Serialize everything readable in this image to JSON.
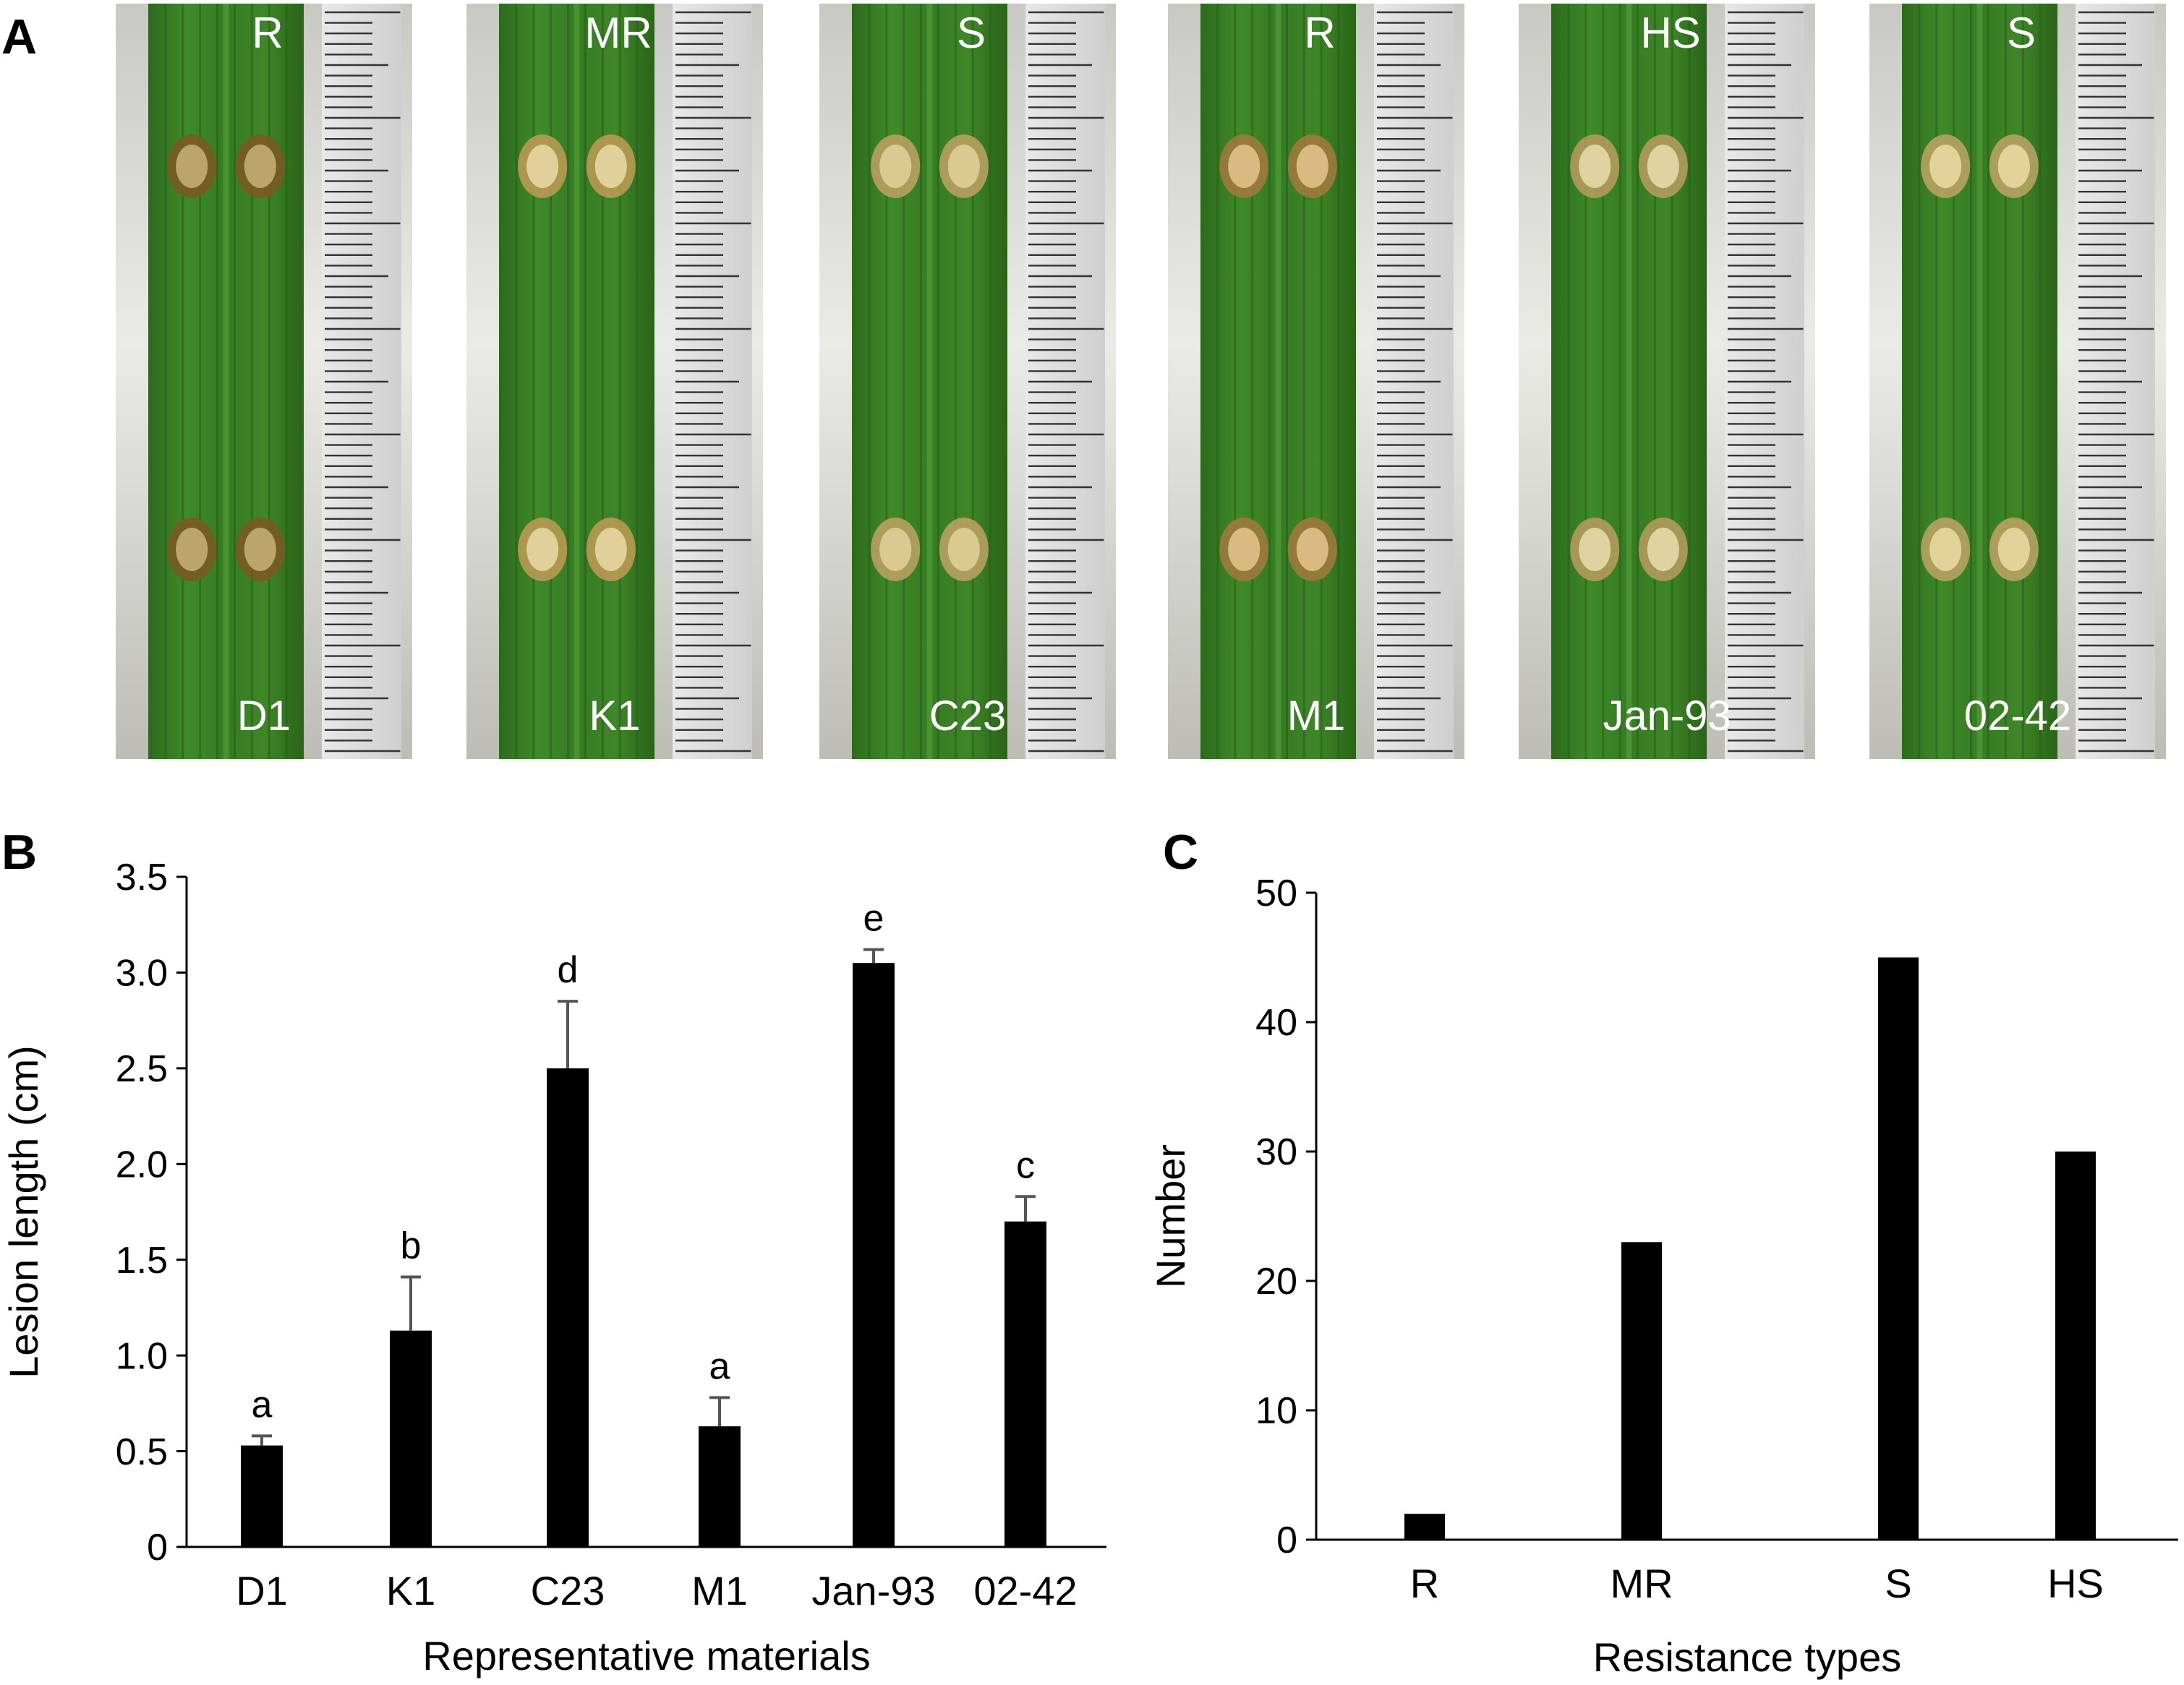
{
  "panels": {
    "a": {
      "letter": "A",
      "leaves": [
        {
          "top_label": "R",
          "bottom_label": "D1",
          "lesion_color": "#7a5a22",
          "lesion_core": "#c8b27a"
        },
        {
          "top_label": "MR",
          "bottom_label": "K1",
          "lesion_color": "#b99a52",
          "lesion_core": "#ead9a8"
        },
        {
          "top_label": "S",
          "bottom_label": "C23",
          "lesion_color": "#b8a060",
          "lesion_core": "#e2d29c"
        },
        {
          "top_label": "R",
          "bottom_label": "M1",
          "lesion_color": "#9e7a3c",
          "lesion_core": "#e6c690"
        },
        {
          "top_label": "HS",
          "bottom_label": "Jan-93",
          "lesion_color": "#b49a5c",
          "lesion_core": "#eadcae"
        },
        {
          "top_label": "S",
          "bottom_label": "02-42",
          "lesion_color": "#b8a262",
          "lesion_core": "#ecdca6"
        }
      ]
    },
    "b": {
      "letter": "B",
      "chart_data": {
        "type": "bar",
        "categories": [
          "D1",
          "K1",
          "C23",
          "M1",
          "Jan-93",
          "02-42"
        ],
        "values": [
          0.53,
          1.13,
          2.5,
          0.63,
          3.05,
          1.7
        ],
        "errors": [
          0.05,
          0.28,
          0.35,
          0.15,
          0.07,
          0.13
        ],
        "significance": [
          "a",
          "b",
          "d",
          "a",
          "e",
          "c"
        ],
        "xlabel": "Representative materials",
        "ylabel": "Lesion length (cm)",
        "ylim": [
          0,
          3.5
        ],
        "yticks": [
          0,
          0.5,
          1.0,
          1.5,
          2.0,
          2.5,
          3.0,
          3.5
        ],
        "ytick_labels": [
          "0",
          "0.5",
          "1.0",
          "1.5",
          "2.0",
          "2.5",
          "3.0",
          "3.5"
        ],
        "grid": false,
        "bar_color": "#000000",
        "error_color": "#555555"
      }
    },
    "c": {
      "letter": "C",
      "chart_data": {
        "type": "bar",
        "categories": [
          "R",
          "MR",
          "S",
          "HS"
        ],
        "values": [
          2,
          23,
          45,
          30
        ],
        "xlabel": "Resistance types",
        "ylabel": "Number",
        "ylim": [
          0,
          50
        ],
        "yticks": [
          0,
          10,
          20,
          30,
          40,
          50
        ],
        "ytick_labels": [
          "0",
          "10",
          "20",
          "30",
          "40",
          "50"
        ],
        "grid": false,
        "bar_color": "#000000"
      }
    }
  }
}
